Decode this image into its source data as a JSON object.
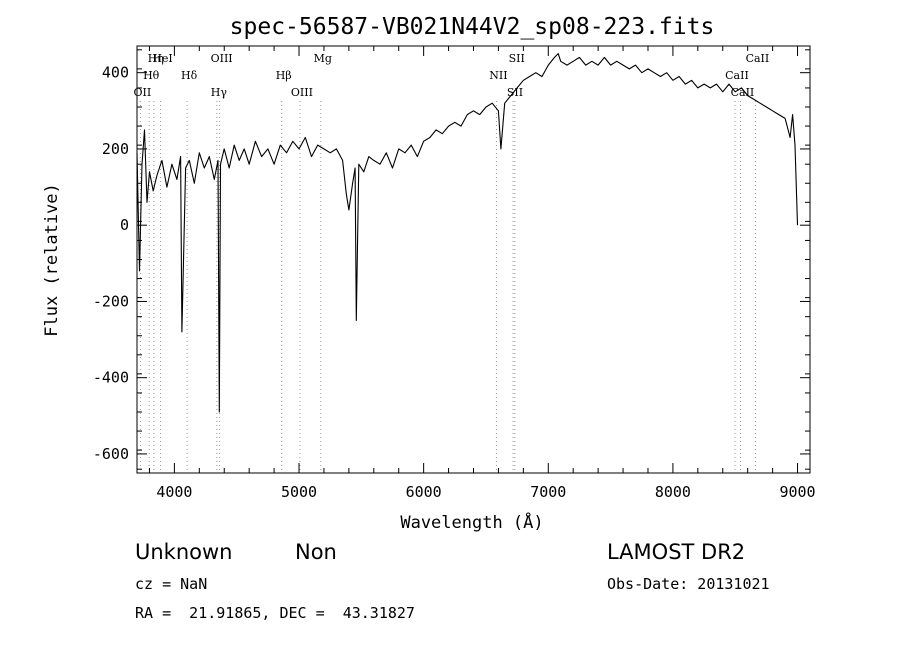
{
  "chart_data": {
    "type": "line",
    "title": "spec-56587-VB021N44V2_sp08-223.fits",
    "xlabel": "Wavelength (Å)",
    "ylabel": "Flux (relative)",
    "xlim": [
      3700,
      9100
    ],
    "ylim": [
      -650,
      470
    ],
    "xticks": [
      4000,
      5000,
      6000,
      7000,
      8000,
      9000
    ],
    "yticks": [
      -600,
      -400,
      -200,
      0,
      200,
      400
    ],
    "grid": false,
    "series": [
      {
        "x": [
          3700,
          3720,
          3740,
          3760,
          3780,
          3800,
          3830,
          3860,
          3900,
          3940,
          3980,
          4020,
          4050,
          4060,
          4090,
          4120,
          4160,
          4200,
          4240,
          4280,
          4320,
          4350,
          4360,
          4370,
          4400,
          4440,
          4480,
          4520,
          4560,
          4600,
          4650,
          4700,
          4750,
          4800,
          4850,
          4900,
          4950,
          5000,
          5050,
          5100,
          5150,
          5200,
          5250,
          5300,
          5350,
          5380,
          5400,
          5430,
          5450,
          5460,
          5480,
          5520,
          5560,
          5600,
          5650,
          5700,
          5750,
          5800,
          5850,
          5900,
          5950,
          6000,
          6050,
          6100,
          6150,
          6200,
          6250,
          6300,
          6350,
          6400,
          6450,
          6500,
          6550,
          6600,
          6620,
          6650,
          6700,
          6750,
          6800,
          6850,
          6900,
          6950,
          7000,
          7050,
          7080,
          7100,
          7150,
          7200,
          7250,
          7300,
          7350,
          7400,
          7450,
          7500,
          7550,
          7600,
          7650,
          7700,
          7750,
          7800,
          7850,
          7900,
          7950,
          8000,
          8050,
          8100,
          8150,
          8200,
          8250,
          8300,
          8350,
          8400,
          8450,
          8500,
          8550,
          8600,
          8650,
          8700,
          8750,
          8800,
          8850,
          8900,
          8940,
          8960,
          8980,
          9000
        ],
        "values": [
          190,
          -120,
          160,
          250,
          60,
          140,
          90,
          130,
          170,
          100,
          160,
          120,
          180,
          -280,
          150,
          170,
          110,
          190,
          150,
          180,
          120,
          170,
          -490,
          160,
          200,
          150,
          210,
          170,
          200,
          160,
          220,
          180,
          200,
          160,
          210,
          190,
          220,
          200,
          230,
          180,
          210,
          200,
          190,
          200,
          170,
          80,
          40,
          110,
          150,
          -250,
          160,
          140,
          180,
          170,
          160,
          190,
          150,
          200,
          190,
          210,
          180,
          220,
          230,
          250,
          240,
          260,
          270,
          260,
          290,
          300,
          290,
          310,
          320,
          300,
          200,
          320,
          340,
          360,
          380,
          390,
          400,
          390,
          420,
          440,
          450,
          430,
          420,
          430,
          440,
          420,
          430,
          420,
          440,
          420,
          430,
          420,
          410,
          420,
          400,
          410,
          400,
          390,
          400,
          380,
          390,
          370,
          380,
          360,
          370,
          360,
          370,
          350,
          370,
          350,
          360,
          340,
          330,
          320,
          310,
          300,
          290,
          280,
          230,
          290,
          210,
          0
        ]
      }
    ],
    "line_markers": [
      {
        "label": "Hη",
        "x": 3835
      },
      {
        "label": "Hθ",
        "x": 3798
      },
      {
        "label": "OII",
        "x": 3727
      },
      {
        "label": "HeI",
        "x": 3889
      },
      {
        "label": "Hδ",
        "x": 4102
      },
      {
        "label": "Hγ",
        "x": 4341
      },
      {
        "label": "OIII",
        "x": 4363
      },
      {
        "label": "Hβ",
        "x": 4861
      },
      {
        "label": "OIII",
        "x": 5007
      },
      {
        "label": "Mg",
        "x": 5175
      },
      {
        "label": "NII",
        "x": 6584
      },
      {
        "label": "SII",
        "x": 6717
      },
      {
        "label": "SII",
        "x": 6731
      },
      {
        "label": "CaII",
        "x": 8498
      },
      {
        "label": "CaII",
        "x": 8542
      },
      {
        "label": "CaII",
        "x": 8662
      }
    ]
  },
  "info": {
    "obj_class": "Unknown",
    "obj_subclass": "Non",
    "survey": "LAMOST DR2",
    "cz": "cz = NaN",
    "obs_date": "Obs-Date: 20131021",
    "radec": "RA =  21.91865, DEC =  43.31827"
  }
}
